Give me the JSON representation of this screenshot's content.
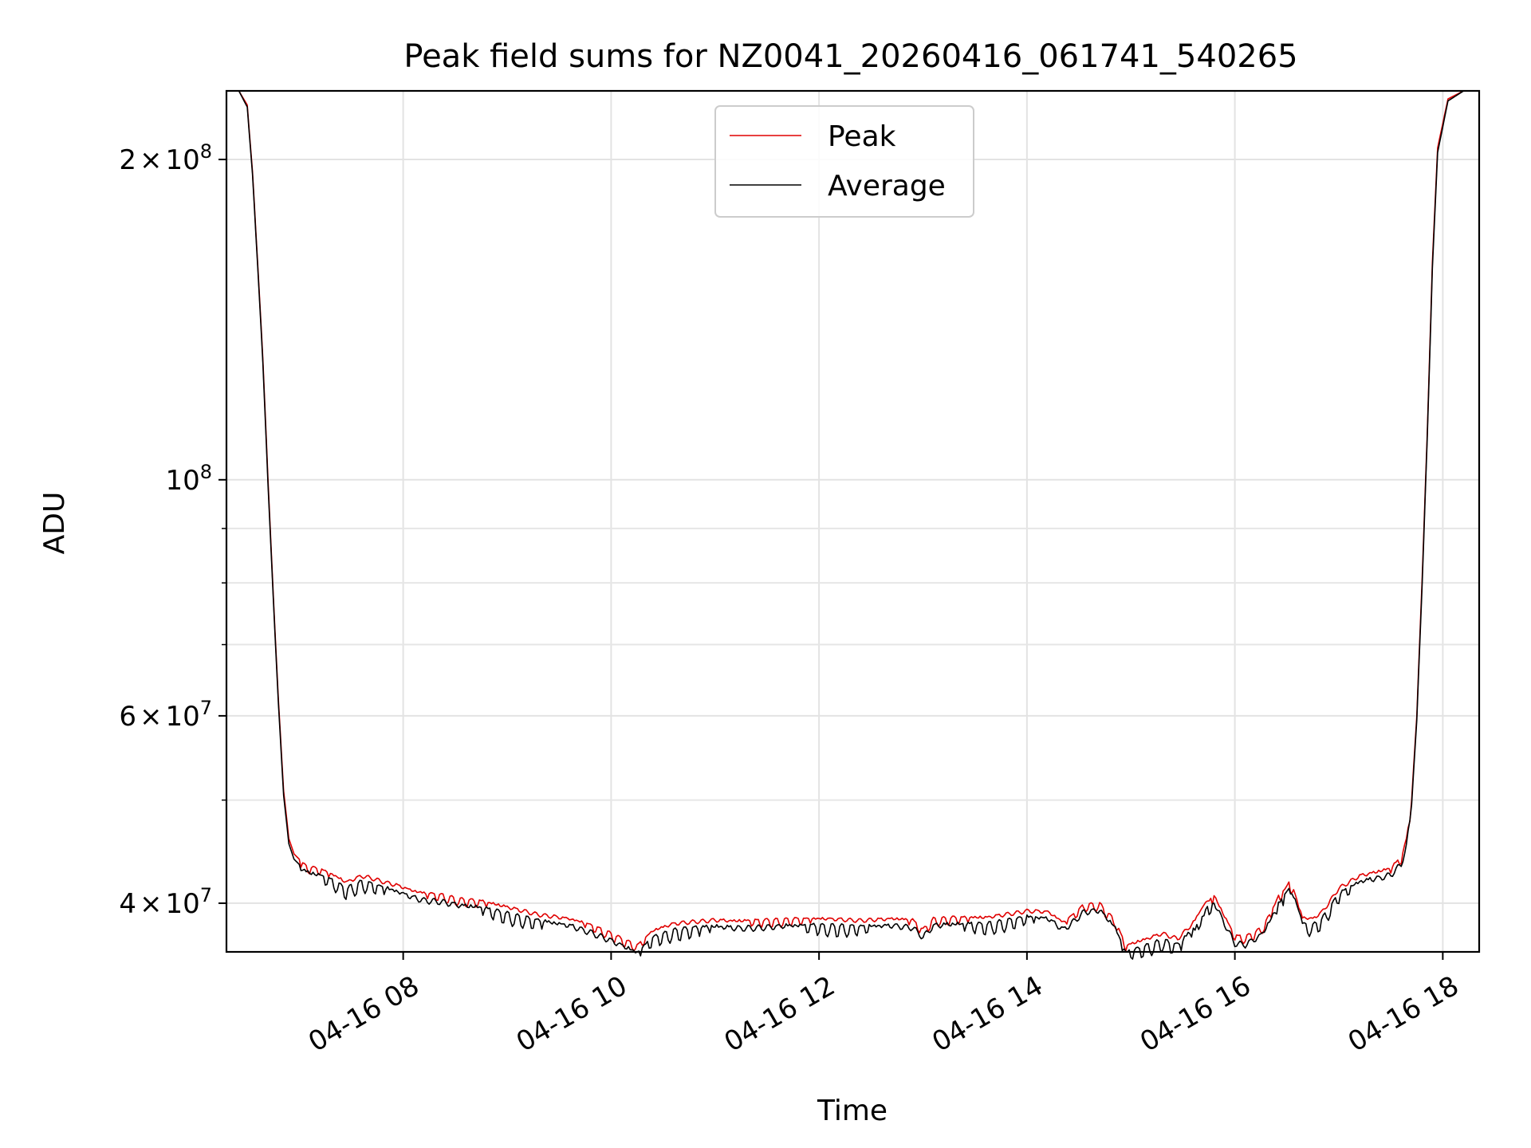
{
  "chart_data": {
    "type": "line",
    "title": "Peak field sums for NZ0041_20260416_061741_540265",
    "xlabel": "Time",
    "ylabel": "ADU",
    "xlim": [
      6.3,
      18.35
    ],
    "ylim": [
      36000000,
      232000000
    ],
    "yscale": "log",
    "grid": true,
    "legend_position": "top-center",
    "x_ticks": [
      {
        "value": 8,
        "label": "04-16 08"
      },
      {
        "value": 10,
        "label": "04-16 10"
      },
      {
        "value": 12,
        "label": "04-16 12"
      },
      {
        "value": 14,
        "label": "04-16 14"
      },
      {
        "value": 16,
        "label": "04-16 16"
      },
      {
        "value": 18,
        "label": "04-16 18"
      }
    ],
    "y_major_ticks": [
      {
        "value": 100000000,
        "base": "10",
        "exp": "8",
        "coef": ""
      },
      {
        "value": 200000000,
        "base": "10",
        "exp": "8",
        "coef": "2"
      },
      {
        "value": 40000000,
        "base": "10",
        "exp": "7",
        "coef": "4"
      },
      {
        "value": 60000000,
        "base": "10",
        "exp": "7",
        "coef": "6"
      }
    ],
    "y_minor_ticks": [
      50000000,
      70000000,
      80000000,
      90000000
    ],
    "times_symbol": "×",
    "series": [
      {
        "name": "Peak",
        "color": "#e00000",
        "x": [
          6.3,
          6.42,
          6.5,
          6.55,
          6.6,
          6.65,
          6.7,
          6.75,
          6.8,
          6.85,
          6.9,
          6.95,
          7.0,
          7.05,
          7.1,
          7.2,
          7.3,
          7.45,
          7.6,
          7.7,
          7.8,
          7.95,
          8.1,
          8.2,
          8.35,
          8.55,
          8.75,
          9.0,
          9.3,
          9.6,
          9.8,
          10.0,
          10.15,
          10.25,
          10.4,
          10.6,
          10.8,
          11.0,
          11.2,
          11.5,
          11.8,
          12.1,
          12.4,
          12.7,
          12.9,
          13.0,
          13.1,
          13.3,
          13.6,
          13.8,
          14.0,
          14.2,
          14.35,
          14.45,
          14.55,
          14.7,
          14.85,
          14.95,
          15.1,
          15.3,
          15.45,
          15.6,
          15.72,
          15.8,
          15.9,
          16.0,
          16.1,
          16.25,
          16.35,
          16.42,
          16.48,
          16.52,
          16.58,
          16.65,
          16.75,
          16.85,
          17.0,
          17.2,
          17.4,
          17.5,
          17.55,
          17.6,
          17.65,
          17.7,
          17.75,
          17.8,
          17.85,
          17.9,
          17.95,
          18.05,
          18.2,
          18.35
        ],
        "values": [
          232000000,
          232000000,
          225000000,
          195000000,
          160000000,
          130000000,
          100000000,
          78000000,
          62000000,
          51000000,
          46000000,
          44500000,
          44000000,
          43600000,
          43400000,
          43200000,
          42800000,
          42000000,
          42600000,
          42400000,
          42100000,
          41700000,
          41200000,
          41000000,
          40900000,
          40500000,
          40300000,
          39800000,
          39200000,
          38800000,
          38300000,
          37600000,
          37000000,
          36600000,
          37800000,
          38400000,
          38600000,
          38700000,
          38600000,
          38700000,
          38800000,
          38800000,
          38700000,
          38800000,
          38700000,
          37900000,
          38800000,
          38900000,
          38900000,
          39200000,
          39500000,
          39400000,
          38500000,
          39200000,
          40000000,
          40100000,
          38600000,
          36600000,
          37000000,
          37600000,
          37200000,
          38500000,
          40100000,
          40800000,
          39000000,
          37400000,
          37300000,
          38000000,
          39300000,
          40700000,
          41300000,
          41900000,
          41000000,
          38900000,
          38800000,
          39500000,
          41500000,
          42600000,
          43000000,
          43300000,
          43800000,
          44300000,
          46000000,
          50000000,
          60000000,
          80000000,
          110000000,
          160000000,
          205000000,
          228000000,
          232000000,
          232000000
        ]
      },
      {
        "name": "Average",
        "color": "#000000",
        "x": [
          6.3,
          6.42,
          6.5,
          6.55,
          6.6,
          6.65,
          6.7,
          6.75,
          6.8,
          6.85,
          6.9,
          6.95,
          7.0,
          7.05,
          7.1,
          7.2,
          7.3,
          7.45,
          7.6,
          7.7,
          7.8,
          7.95,
          8.1,
          8.2,
          8.35,
          8.55,
          8.75,
          9.0,
          9.3,
          9.6,
          9.8,
          10.0,
          10.15,
          10.25,
          10.4,
          10.6,
          10.8,
          11.0,
          11.2,
          11.5,
          11.8,
          12.1,
          12.4,
          12.7,
          12.9,
          13.0,
          13.1,
          13.3,
          13.6,
          13.8,
          14.0,
          14.2,
          14.35,
          14.45,
          14.55,
          14.7,
          14.85,
          14.95,
          15.1,
          15.3,
          15.45,
          15.6,
          15.72,
          15.8,
          15.9,
          16.0,
          16.1,
          16.25,
          16.35,
          16.42,
          16.48,
          16.52,
          16.58,
          16.65,
          16.75,
          16.85,
          17.0,
          17.2,
          17.4,
          17.5,
          17.55,
          17.6,
          17.65,
          17.7,
          17.75,
          17.8,
          17.85,
          17.9,
          17.95,
          18.05,
          18.2,
          18.35
        ],
        "values": [
          232000000,
          232000000,
          224000000,
          194000000,
          159000000,
          129000000,
          99000000,
          77500000,
          61500000,
          50500000,
          45500000,
          44000000,
          43500000,
          43100000,
          42900000,
          42700000,
          42300000,
          41500000,
          42100000,
          41900000,
          41600000,
          41200000,
          40700000,
          40500000,
          40400000,
          40000000,
          39800000,
          39300000,
          38700000,
          38300000,
          37800000,
          37100000,
          36500000,
          36100000,
          37300000,
          37900000,
          38100000,
          38200000,
          38100000,
          38200000,
          38300000,
          38300000,
          38200000,
          38300000,
          38200000,
          37400000,
          38300000,
          38400000,
          38400000,
          38700000,
          39000000,
          38900000,
          38000000,
          38700000,
          39500000,
          39600000,
          38100000,
          36100000,
          36500000,
          37100000,
          36700000,
          38000000,
          39600000,
          40300000,
          38500000,
          36900000,
          36800000,
          37500000,
          38800000,
          40200000,
          40800000,
          41400000,
          40500000,
          38400000,
          38300000,
          39000000,
          41000000,
          42100000,
          42500000,
          42800000,
          43300000,
          43800000,
          45500000,
          49500000,
          59500000,
          79000000,
          109000000,
          158000000,
          203000000,
          227000000,
          232000000,
          232000000
        ]
      }
    ]
  }
}
